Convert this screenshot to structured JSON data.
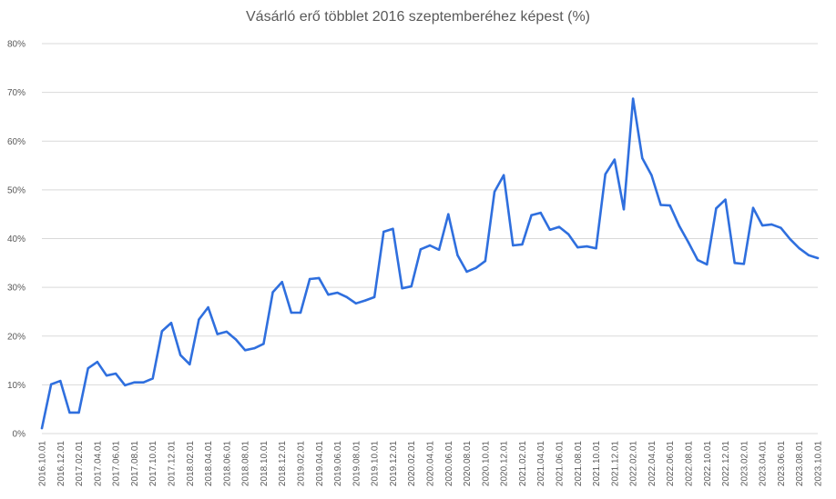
{
  "chart_data": {
    "type": "line",
    "title": "Vásárló erő többlet 2016 szeptemberéhez képest (%)",
    "xlabel": "",
    "ylabel": "",
    "ylim": [
      0,
      80
    ],
    "grid": true,
    "legend": "none",
    "line_color": "#2f6fde",
    "y_ticks": [
      "0%",
      "10%",
      "20%",
      "30%",
      "40%",
      "50%",
      "60%",
      "70%",
      "80%"
    ],
    "x_tick_labels": [
      "2016.10.01",
      "2016.12.01",
      "2017.02.01",
      "2017.04.01",
      "2017.06.01",
      "2017.08.01",
      "2017.10.01",
      "2017.12.01",
      "2018.02.01",
      "2018.04.01",
      "2018.06.01",
      "2018.08.01",
      "2018.10.01",
      "2018.12.01",
      "2019.02.01",
      "2019.04.01",
      "2019.06.01",
      "2019.08.01",
      "2019.10.01",
      "2019.12.01",
      "2020.02.01",
      "2020.04.01",
      "2020.06.01",
      "2020.08.01",
      "2020.10.01",
      "2020.12.01",
      "2021.02.01",
      "2021.04.01",
      "2021.06.01",
      "2021.08.01",
      "2021.10.01",
      "2021.12.01",
      "2022.02.01",
      "2022.04.01",
      "2022.06.01",
      "2022.08.01",
      "2022.10.01",
      "2022.12.01",
      "2023.02.01",
      "2023.04.01",
      "2023.06.01",
      "2023.08.01",
      "2023.10.01"
    ],
    "x_start": "2016.10.01",
    "x_end": "2023.10.01",
    "series": [
      {
        "values": [
          1.1,
          10.1,
          10.8,
          4.3,
          4.3,
          13.4,
          14.7,
          11.9,
          12.3,
          9.9,
          10.5,
          10.5,
          11.3,
          21.0,
          22.7,
          16.1,
          14.2,
          23.4,
          25.9,
          20.4,
          20.9,
          19.3,
          17.1,
          17.5,
          18.4,
          29.0,
          31.1,
          24.8,
          24.8,
          31.7,
          31.9,
          28.5,
          28.9,
          28.0,
          26.7,
          27.3,
          28.0,
          41.4,
          42.0,
          29.8,
          30.2,
          37.8,
          38.6,
          37.7,
          45.0,
          36.6,
          33.2,
          34.0,
          35.4,
          49.6,
          53.0,
          38.6,
          38.8,
          44.8,
          45.3,
          41.8,
          42.4,
          40.9,
          38.2,
          38.4,
          38.0,
          53.2,
          56.2,
          46.0,
          68.7,
          56.5,
          53.0,
          46.9,
          46.8,
          42.6,
          39.2,
          35.6,
          34.7,
          46.2,
          48.0,
          35.0,
          34.8,
          46.3,
          42.7,
          42.9,
          42.2,
          39.9,
          38.0,
          36.6,
          36.0
        ]
      }
    ]
  }
}
